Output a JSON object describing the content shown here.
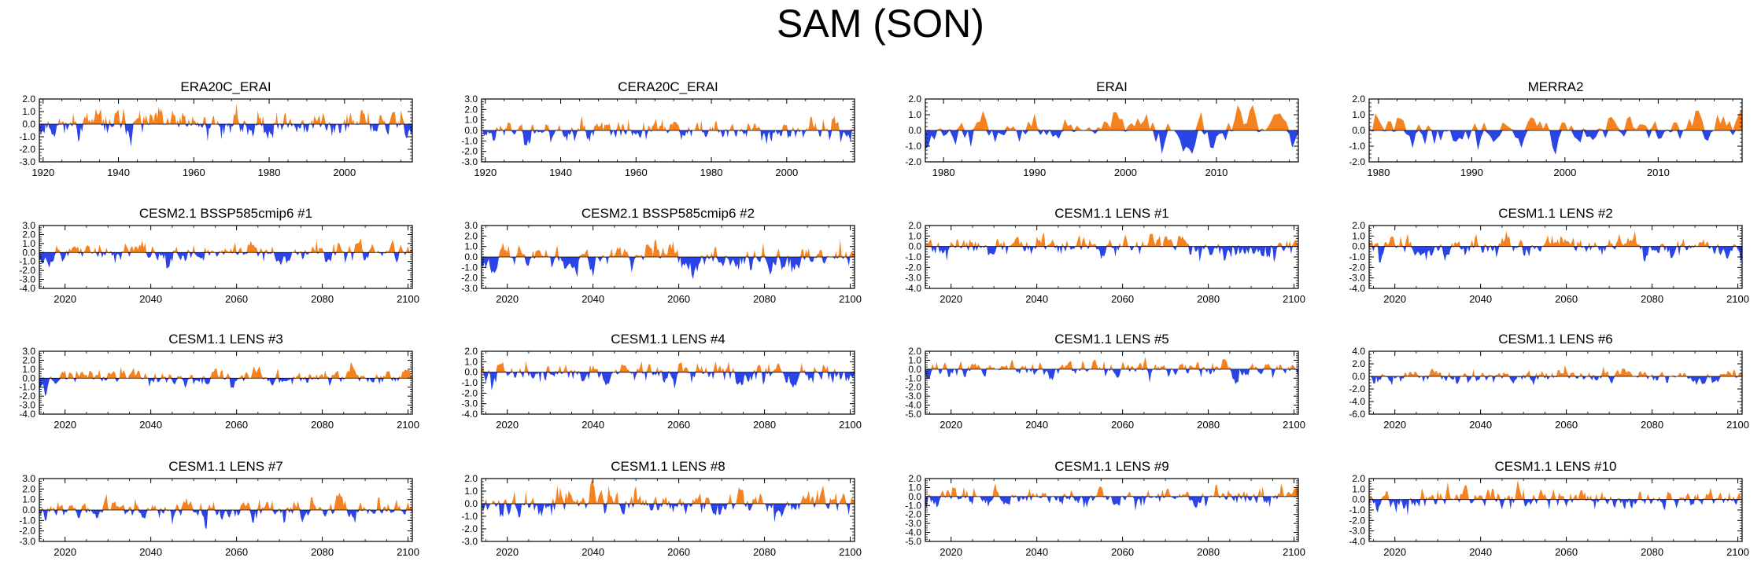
{
  "figure": {
    "title": "SAM (SON)"
  },
  "colors": {
    "positive": "#f5821f",
    "negative": "#2a44e8",
    "axis": "#000000"
  },
  "chart_data": [
    {
      "type": "area",
      "title": "ERA20C_ERAI",
      "ylim": [
        -3,
        2
      ],
      "yticks": [
        "2.0",
        "1.0",
        "0.0",
        "-1.0",
        "-2.0",
        "-3.0"
      ],
      "ytick_values": [
        2,
        1,
        0,
        -1,
        -2,
        -3
      ],
      "xlim": [
        1919,
        2018
      ],
      "xticks": [
        1920,
        1940,
        1960,
        1980,
        2000
      ],
      "seed": 11,
      "amp": 0.85,
      "vmin": -2.9,
      "vmax": 1.9
    },
    {
      "type": "area",
      "title": "CERA20C_ERAI",
      "ylim": [
        -3,
        3
      ],
      "yticks": [
        "3.0",
        "2.0",
        "1.0",
        "0.0",
        "-1.0",
        "-2.0",
        "-3.0"
      ],
      "ytick_values": [
        3,
        2,
        1,
        0,
        -1,
        -2,
        -3
      ],
      "xlim": [
        1919,
        2018
      ],
      "xticks": [
        1920,
        1940,
        1960,
        1980,
        2000
      ],
      "seed": 23,
      "amp": 0.8,
      "vmin": -2.6,
      "vmax": 2.8
    },
    {
      "type": "area",
      "title": "ERAI",
      "ylim": [
        -2,
        2
      ],
      "yticks": [
        "2.0",
        "1.0",
        "0.0",
        "-1.0",
        "-2.0"
      ],
      "ytick_values": [
        2,
        1,
        0,
        -1,
        -2
      ],
      "xlim": [
        1978,
        2019
      ],
      "xticks": [
        1980,
        1990,
        2000,
        2010
      ],
      "seed": 37,
      "amp": 0.9,
      "vmin": -1.9,
      "vmax": 1.7
    },
    {
      "type": "area",
      "title": "MERRA2",
      "ylim": [
        -2,
        2
      ],
      "yticks": [
        "2.0",
        "1.0",
        "0.0",
        "-1.0",
        "-2.0"
      ],
      "ytick_values": [
        2,
        1,
        0,
        -1,
        -2
      ],
      "xlim": [
        1979,
        2019
      ],
      "xticks": [
        1980,
        1990,
        2000,
        2010
      ],
      "seed": 41,
      "amp": 0.9,
      "vmin": -2.0,
      "vmax": 1.9
    },
    {
      "type": "area",
      "title": "CESM2.1 BSSP585cmip6 #1",
      "ylim": [
        -4,
        3
      ],
      "yticks": [
        "3.0",
        "2.0",
        "1.0",
        "0.0",
        "-1.0",
        "-2.0",
        "-3.0",
        "-4.0"
      ],
      "ytick_values": [
        3,
        2,
        1,
        0,
        -1,
        -2,
        -3,
        -4
      ],
      "xlim": [
        2014,
        2101
      ],
      "xticks": [
        2020,
        2040,
        2060,
        2080,
        2100
      ],
      "seed": 53,
      "amp": 0.9,
      "vmin": -3.6,
      "vmax": 2.2
    },
    {
      "type": "area",
      "title": "CESM2.1 BSSP585cmip6 #2",
      "ylim": [
        -3,
        3
      ],
      "yticks": [
        "3.0",
        "2.0",
        "1.0",
        "0.0",
        "-1.0",
        "-2.0",
        "-3.0"
      ],
      "ytick_values": [
        3,
        2,
        1,
        0,
        -1,
        -2,
        -3
      ],
      "xlim": [
        2014,
        2101
      ],
      "xticks": [
        2020,
        2040,
        2060,
        2080,
        2100
      ],
      "seed": 67,
      "amp": 0.9,
      "vmin": -2.6,
      "vmax": 2.3
    },
    {
      "type": "area",
      "title": "CESM1.1 LENS #1",
      "ylim": [
        -4,
        2
      ],
      "yticks": [
        "2.0",
        "1.0",
        "0.0",
        "-1.0",
        "-2.0",
        "-3.0",
        "-4.0"
      ],
      "ytick_values": [
        2,
        1,
        0,
        -1,
        -2,
        -3,
        -4
      ],
      "xlim": [
        2014,
        2101
      ],
      "xticks": [
        2020,
        2040,
        2060,
        2080,
        2100
      ],
      "seed": 71,
      "amp": 0.8,
      "vmin": -2.9,
      "vmax": 1.8
    },
    {
      "type": "area",
      "title": "CESM1.1 LENS #2",
      "ylim": [
        -4,
        2
      ],
      "yticks": [
        "2.0",
        "1.0",
        "0.0",
        "-1.0",
        "-2.0",
        "-3.0",
        "-4.0"
      ],
      "ytick_values": [
        2,
        1,
        0,
        -1,
        -2,
        -3,
        -4
      ],
      "xlim": [
        2014,
        2101
      ],
      "xticks": [
        2020,
        2040,
        2060,
        2080,
        2100
      ],
      "seed": 83,
      "amp": 0.8,
      "vmin": -2.6,
      "vmax": 1.9
    },
    {
      "type": "area",
      "title": "CESM1.1 LENS #3",
      "ylim": [
        -4,
        3
      ],
      "yticks": [
        "3.0",
        "2.0",
        "1.0",
        "0.0",
        "-1.0",
        "-2.0",
        "-3.0",
        "-4.0"
      ],
      "ytick_values": [
        3,
        2,
        1,
        0,
        -1,
        -2,
        -3,
        -4
      ],
      "xlim": [
        2014,
        2101
      ],
      "xticks": [
        2020,
        2040,
        2060,
        2080,
        2100
      ],
      "seed": 97,
      "amp": 0.8,
      "vmin": -3.0,
      "vmax": 1.8
    },
    {
      "type": "area",
      "title": "CESM1.1 LENS #4",
      "ylim": [
        -4,
        2
      ],
      "yticks": [
        "2.0",
        "1.0",
        "0.0",
        "-1.0",
        "-2.0",
        "-3.0",
        "-4.0"
      ],
      "ytick_values": [
        2,
        1,
        0,
        -1,
        -2,
        -3,
        -4
      ],
      "xlim": [
        2014,
        2101
      ],
      "xticks": [
        2020,
        2040,
        2060,
        2080,
        2100
      ],
      "seed": 101,
      "amp": 0.9,
      "vmin": -3.2,
      "vmax": 1.9
    },
    {
      "type": "area",
      "title": "CESM1.1 LENS #5",
      "ylim": [
        -5,
        2
      ],
      "yticks": [
        "2.0",
        "1.0",
        "0.0",
        "-1.0",
        "-2.0",
        "-3.0",
        "-4.0",
        "-5.0"
      ],
      "ytick_values": [
        2,
        1,
        0,
        -1,
        -2,
        -3,
        -4,
        -5
      ],
      "xlim": [
        2014,
        2101
      ],
      "xticks": [
        2020,
        2040,
        2060,
        2080,
        2100
      ],
      "seed": 113,
      "amp": 0.8,
      "vmin": -4.6,
      "vmax": 1.7
    },
    {
      "type": "area",
      "title": "CESM1.1 LENS #6",
      "ylim": [
        -6,
        4
      ],
      "yticks": [
        "4.0",
        "2.0",
        "0.0",
        "-2.0",
        "-4.0",
        "-6.0"
      ],
      "ytick_values": [
        4,
        2,
        0,
        -2,
        -4,
        -6
      ],
      "xlim": [
        2014,
        2101
      ],
      "xticks": [
        2020,
        2040,
        2060,
        2080,
        2100
      ],
      "seed": 127,
      "amp": 0.9,
      "vmin": -2.8,
      "vmax": 2.2
    },
    {
      "type": "area",
      "title": "CESM1.1 LENS #7",
      "ylim": [
        -3,
        3
      ],
      "yticks": [
        "3.0",
        "2.0",
        "1.0",
        "0.0",
        "-1.0",
        "-2.0",
        "-3.0"
      ],
      "ytick_values": [
        3,
        2,
        1,
        0,
        -1,
        -2,
        -3
      ],
      "xlim": [
        2014,
        2101
      ],
      "xticks": [
        2020,
        2040,
        2060,
        2080,
        2100
      ],
      "seed": 131,
      "amp": 0.85,
      "vmin": -2.7,
      "vmax": 2.0
    },
    {
      "type": "area",
      "title": "CESM1.1 LENS #8",
      "ylim": [
        -3,
        2
      ],
      "yticks": [
        "2.0",
        "1.0",
        "0.0",
        "-1.0",
        "-2.0",
        "-3.0"
      ],
      "ytick_values": [
        2,
        1,
        0,
        -1,
        -2,
        -3
      ],
      "xlim": [
        2014,
        2101
      ],
      "xticks": [
        2020,
        2040,
        2060,
        2080,
        2100
      ],
      "seed": 149,
      "amp": 0.9,
      "vmin": -2.4,
      "vmax": 1.9
    },
    {
      "type": "area",
      "title": "CESM1.1 LENS #9",
      "ylim": [
        -5,
        2
      ],
      "yticks": [
        "2.0",
        "1.0",
        "0.0",
        "-1.0",
        "-2.0",
        "-3.0",
        "-4.0",
        "-5.0"
      ],
      "ytick_values": [
        2,
        1,
        0,
        -1,
        -2,
        -3,
        -4,
        -5
      ],
      "xlim": [
        2014,
        2101
      ],
      "xticks": [
        2020,
        2040,
        2060,
        2080,
        2100
      ],
      "seed": 157,
      "amp": 0.8,
      "vmin": -4.7,
      "vmax": 1.6
    },
    {
      "type": "area",
      "title": "CESM1.1 LENS #10",
      "ylim": [
        -4,
        2
      ],
      "yticks": [
        "2.0",
        "1.0",
        "0.0",
        "-1.0",
        "-2.0",
        "-3.0",
        "-4.0"
      ],
      "ytick_values": [
        2,
        1,
        0,
        -1,
        -2,
        -3,
        -4
      ],
      "xlim": [
        2014,
        2101
      ],
      "xticks": [
        2020,
        2040,
        2060,
        2080,
        2100
      ],
      "seed": 163,
      "amp": 0.85,
      "vmin": -3.3,
      "vmax": 1.9
    }
  ]
}
